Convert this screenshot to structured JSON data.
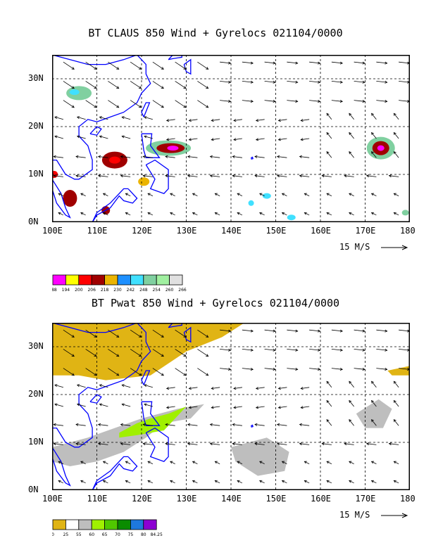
{
  "panel1": {
    "title": "BT CLAUS 850 Wind + Gyrelocs 021104/0000",
    "lat_labels": [
      "30N",
      "20N",
      "10N",
      "0N"
    ],
    "lon_labels": [
      "100E",
      "110E",
      "120E",
      "130E",
      "140E",
      "150E",
      "160E",
      "170E",
      "180"
    ],
    "ref_vector": "15 M/S"
  },
  "colorbar1": {
    "labels": [
      "188",
      "194",
      "200",
      "206",
      "218",
      "230",
      "242",
      "248",
      "254",
      "260",
      "266"
    ],
    "colors": [
      "#ff00ff",
      "#ffff00",
      "#ff0000",
      "#a00000",
      "#ebb400",
      "#1e90ff",
      "#40e0ff",
      "#80d0a0",
      "#a0f0a0",
      "#e0e0e0"
    ]
  },
  "panel2": {
    "title": "BT Pwat 850 Wind + Gyrelocs 021104/0000",
    "lat_labels": [
      "30N",
      "20N",
      "10N",
      "0N"
    ],
    "lon_labels": [
      "100E",
      "110E",
      "120E",
      "130E",
      "140E",
      "150E",
      "160E",
      "170E",
      "180"
    ],
    "ref_vector": "15 M/S"
  },
  "colorbar2": {
    "labels": [
      "0",
      "25",
      "55",
      "60",
      "65",
      "70",
      "75",
      "80",
      "84.25"
    ],
    "colors": [
      "#e0b414",
      "#ffffff",
      "#bebebe",
      "#a0f000",
      "#50c800",
      "#0a8c00",
      "#1e78dc",
      "#8c00d2"
    ]
  },
  "colors": {
    "coast": "#0000ff",
    "grid": "#000000",
    "vector": "#000000"
  }
}
